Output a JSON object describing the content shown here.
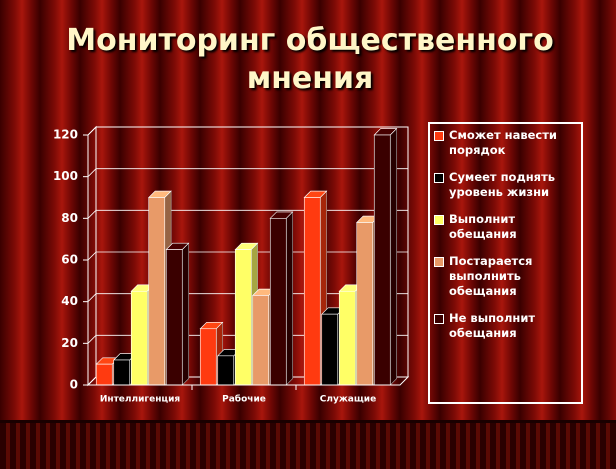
{
  "chart_data": {
    "type": "bar3d",
    "title": "Мониторинг общественного мнения",
    "categories": [
      "Интеллигенция",
      "Рабочие",
      "Служащие"
    ],
    "series": [
      {
        "name": "Сможет навести порядок",
        "color": "#ff3a10",
        "values": [
          10,
          27,
          90
        ]
      },
      {
        "name": "Сумеет поднять уровень жизни",
        "color": "#000000",
        "values": [
          12,
          14,
          34
        ]
      },
      {
        "name": "Выполнит обещания",
        "color": "#ffff66",
        "values": [
          45,
          65,
          45
        ]
      },
      {
        "name": "Постарается выполнить обещания",
        "color": "#e89a68",
        "values": [
          90,
          43,
          78
        ]
      },
      {
        "name": "Не выполнит обещания",
        "color": "#3a0000",
        "values": [
          65,
          80,
          120
        ]
      }
    ],
    "ylim": [
      0,
      120
    ],
    "yticks": [
      0,
      20,
      40,
      60,
      80,
      100,
      120
    ],
    "grid": true,
    "legend": "right"
  }
}
